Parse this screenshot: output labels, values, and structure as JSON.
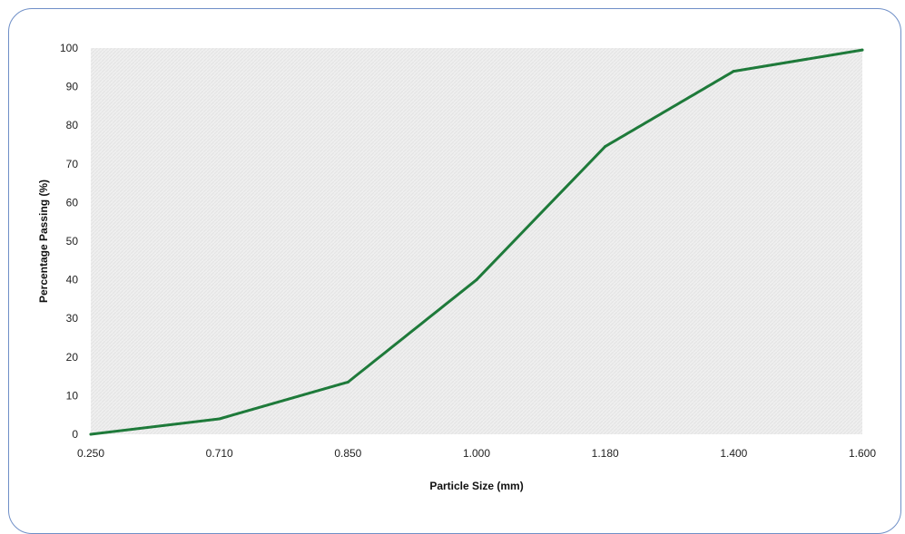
{
  "chart_data": {
    "type": "line",
    "x": [
      "0.250",
      "0.710",
      "0.850",
      "1.000",
      "1.180",
      "1.400",
      "1.600"
    ],
    "series": [
      {
        "values": [
          0,
          4,
          13.5,
          40,
          74.5,
          94,
          99.5
        ]
      }
    ],
    "xlabel": "Particle Size (mm)",
    "ylabel": "Percentage Passing (%)",
    "ylim": [
      0,
      100
    ],
    "yticks": [
      "0",
      "10",
      "20",
      "30",
      "40",
      "50",
      "60",
      "70",
      "80",
      "90",
      "100"
    ],
    "grid": false,
    "colors": {
      "line": "#1e7a3a",
      "plot_background": "#efefef",
      "frame_border": "#6f8fc7"
    }
  }
}
